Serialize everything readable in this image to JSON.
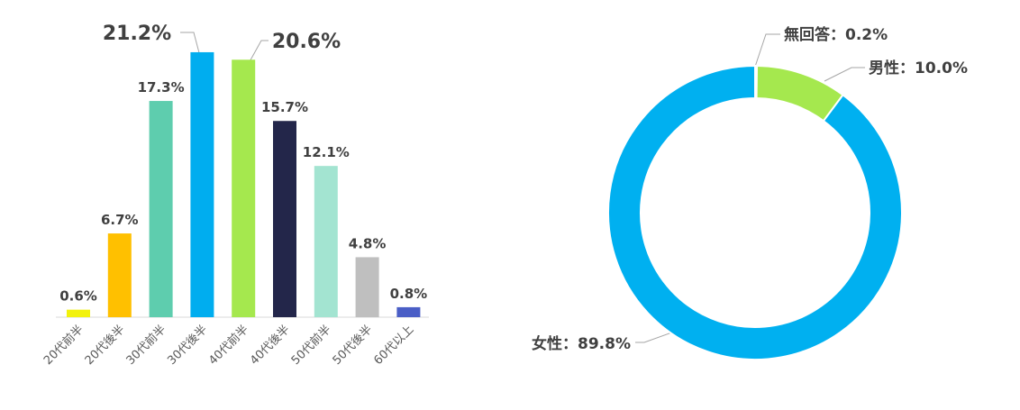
{
  "chart_data": [
    {
      "type": "bar",
      "categories": [
        "20代前半",
        "20代後半",
        "30代前半",
        "30代後半",
        "40代前半",
        "40代後半",
        "50代前半",
        "50代後半",
        "60代以上"
      ],
      "values": [
        0.6,
        6.7,
        17.3,
        21.2,
        20.6,
        15.7,
        12.1,
        4.8,
        0.8
      ],
      "value_labels": [
        "0.6%",
        "6.7%",
        "17.3%",
        "21.2%",
        "20.6%",
        "15.7%",
        "12.1%",
        "4.8%",
        "0.8%"
      ],
      "colors": [
        "#f2f20c",
        "#ffc000",
        "#5ecdae",
        "#00adef",
        "#a5e84e",
        "#23264a",
        "#a3e4d1",
        "#bfbfbf",
        "#4a5ec6"
      ]
    },
    {
      "type": "donut",
      "values": [
        0.2,
        10.0,
        89.8
      ],
      "value_labels": [
        "無回答：0.2%",
        "男性：10.0%",
        "女性：89.8%"
      ],
      "colors": [
        "#d9d9d9",
        "#a5e84e",
        "#00b0f0"
      ]
    }
  ]
}
